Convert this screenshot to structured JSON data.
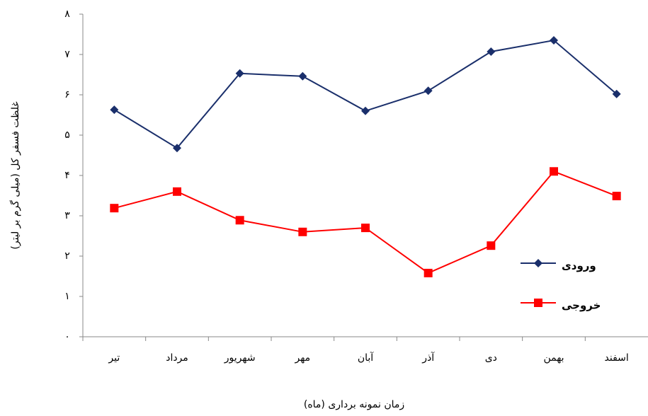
{
  "chart_data": {
    "type": "line",
    "y_label": "غلظت فسفر کل (میلی گرم بر لیتر)",
    "x_label": "زمان نمونه برداری (ماه)",
    "categories": [
      "تیر",
      "مرداد",
      "شهریور",
      "مهر",
      "آبان",
      "آذر",
      "دی",
      "بهمن",
      "اسفند"
    ],
    "series": [
      {
        "name": "ورودی",
        "color": "#1a2f6b",
        "marker": "diamond",
        "values": [
          5.63,
          4.68,
          6.53,
          6.46,
          5.6,
          6.1,
          7.07,
          7.35,
          6.02
        ]
      },
      {
        "name": "خروجی",
        "color": "#ff0000",
        "marker": "square",
        "values": [
          3.19,
          3.6,
          2.89,
          2.6,
          2.7,
          1.58,
          2.26,
          4.1,
          3.49
        ]
      }
    ],
    "ylim": [
      0,
      8
    ],
    "yticks": [
      {
        "value": 0,
        "label": "۰"
      },
      {
        "value": 1,
        "label": "۱"
      },
      {
        "value": 2,
        "label": "۲"
      },
      {
        "value": 3,
        "label": "۳"
      },
      {
        "value": 4,
        "label": "۴"
      },
      {
        "value": 5,
        "label": "۵"
      },
      {
        "value": 6,
        "label": "۶"
      },
      {
        "value": 7,
        "label": "۷"
      },
      {
        "value": 8,
        "label": "۸"
      }
    ],
    "legend": "right",
    "grid": false
  }
}
